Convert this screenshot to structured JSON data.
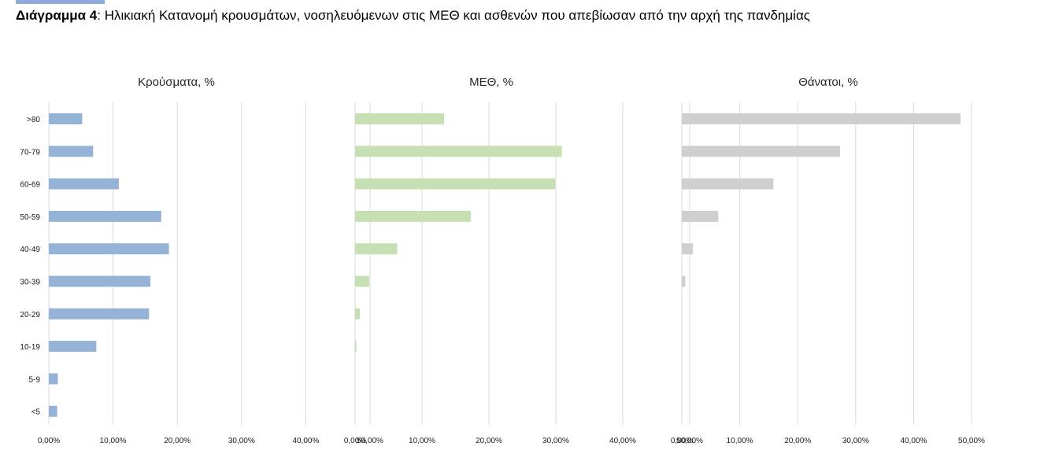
{
  "caption": {
    "label": "Διάγραμμα 4",
    "text": ": Ηλικιακή Κατανομή κρουσμάτων, νοσηλευόμενων στις ΜΕΘ και ασθενών που απεβίωσαν από την αρχή της πανδημίας"
  },
  "chart_data": [
    {
      "type": "bar",
      "orientation": "horizontal",
      "title": "Κρούσματα, %",
      "color": "#95b3d7",
      "categories": [
        ">80",
        "70-79",
        "60-69",
        "50-59",
        "40-49",
        "30-39",
        "20-29",
        "10-19",
        "5-9",
        "<5"
      ],
      "values": [
        5.2,
        6.9,
        10.9,
        17.5,
        18.7,
        15.8,
        15.6,
        7.4,
        1.4,
        1.3
      ],
      "xlim": [
        0,
        50
      ],
      "xticks": [
        "0,00%",
        "10,00%",
        "20,00%",
        "30,00%",
        "40,00%",
        "50,00%"
      ],
      "grid": true,
      "legend": "none"
    },
    {
      "type": "bar",
      "orientation": "horizontal",
      "title": "ΜΕΘ, %",
      "color": "#c6e0b4",
      "categories": [
        ">80",
        "70-79",
        "60-69",
        "50-59",
        "40-49",
        "30-39",
        "20-29",
        "10-19",
        "5-9",
        "<5"
      ],
      "values": [
        13.3,
        30.9,
        29.9,
        17.3,
        6.3,
        2.1,
        0.7,
        0.2,
        0,
        0
      ],
      "xlim": [
        0,
        50
      ],
      "xticks": [
        "0,00%",
        "10,00%",
        "20,00%",
        "30,00%",
        "40,00%",
        "50,00%"
      ],
      "grid": true,
      "legend": "none"
    },
    {
      "type": "bar",
      "orientation": "horizontal",
      "title": "Θάνατοι, %",
      "color": "#d0cece",
      "categories": [
        ">80",
        "70-79",
        "60-69",
        "50-59",
        "40-49",
        "30-39",
        "20-29",
        "10-19",
        "5-9",
        "<5"
      ],
      "values": [
        48.1,
        27.3,
        15.8,
        6.3,
        1.9,
        0.6,
        0,
        0,
        0,
        0
      ],
      "xlim": [
        0,
        50
      ],
      "xticks": [
        "0,00%",
        "10,00%",
        "20,00%",
        "30,00%",
        "40,00%",
        "50,00%"
      ],
      "grid": true,
      "legend": "none"
    }
  ]
}
